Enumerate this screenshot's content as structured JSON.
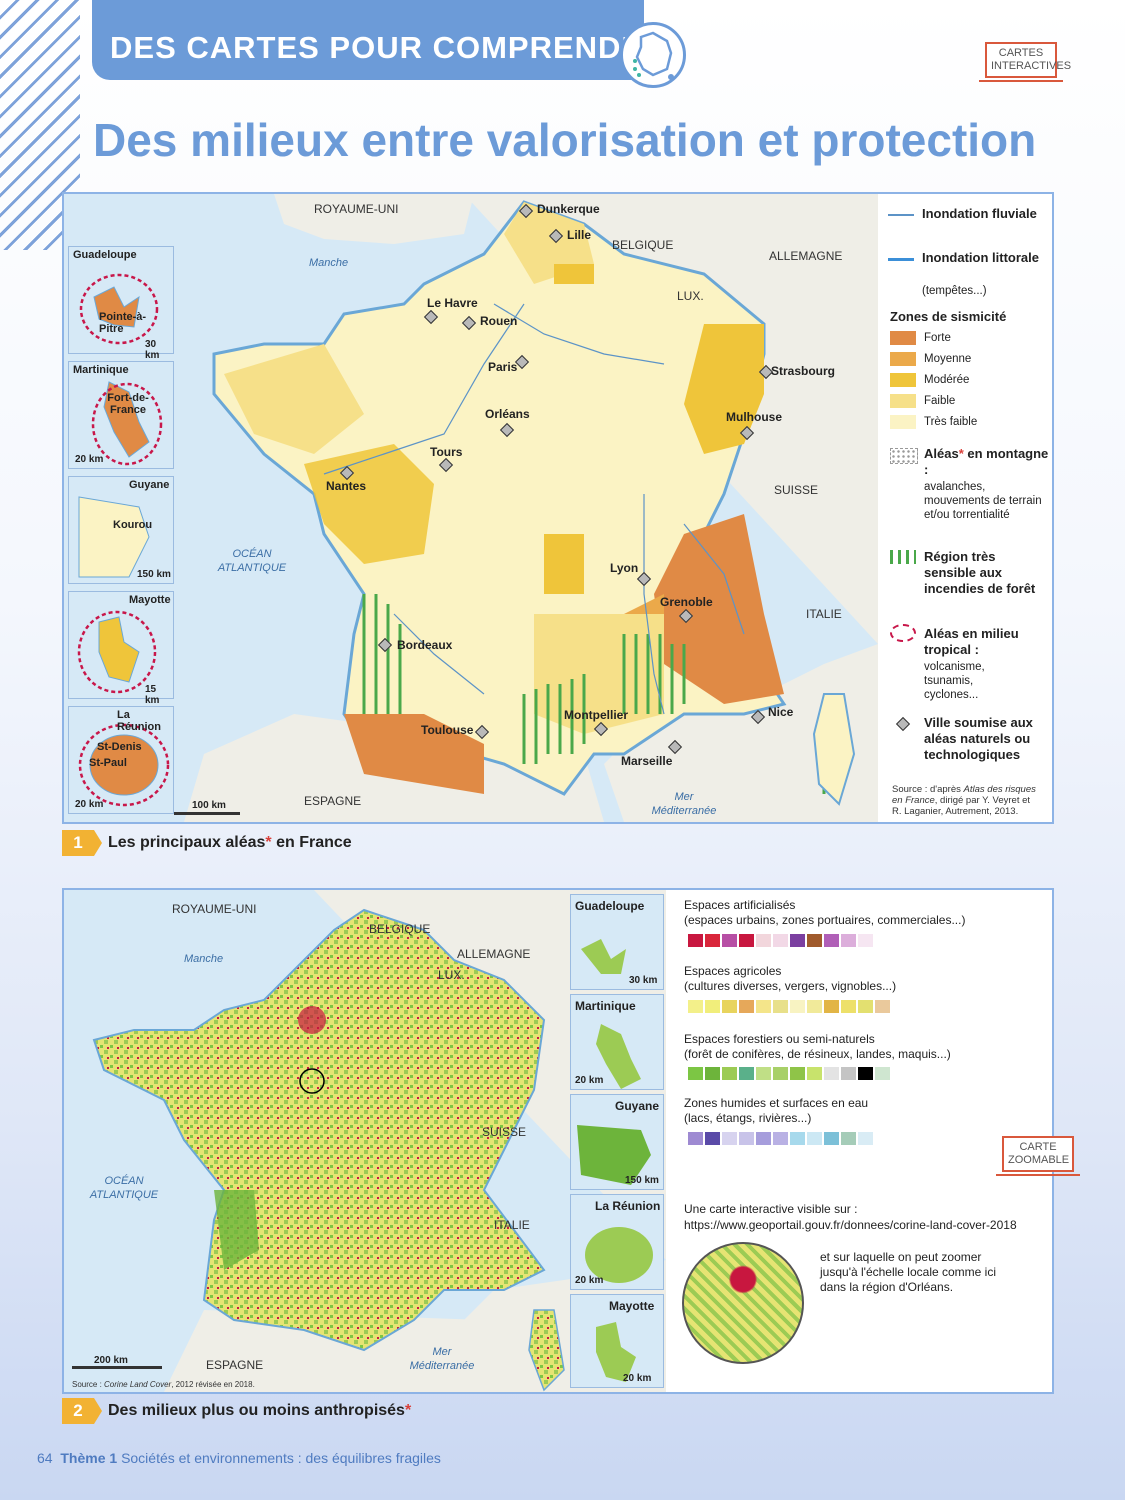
{
  "header": {
    "section": "DES CARTES POUR COMPRENDRE",
    "badge_top": "CARTES INTERACTIVES",
    "title": "Des milieux entre valorisation et protection"
  },
  "map1": {
    "countries": [
      "ROYAUME-UNI",
      "BELGIQUE",
      "ALLEMAGNE",
      "LUX.",
      "SUISSE",
      "ITALIE",
      "ESPAGNE"
    ],
    "seas": {
      "manche": "Manche",
      "ocean": "OCÉAN ATLANTIQUE",
      "med": "Mer Méditerranée"
    },
    "cities": [
      "Dunkerque",
      "Lille",
      "Le Havre",
      "Rouen",
      "Paris",
      "Strasbourg",
      "Orléans",
      "Mulhouse",
      "Tours",
      "Nantes",
      "Lyon",
      "Grenoble",
      "Bordeaux",
      "Montpellier",
      "Nice",
      "Toulouse",
      "Marseille"
    ],
    "insets": [
      {
        "name": "Guadeloupe",
        "city": "Pointe-à-Pitre",
        "scale": "30 km"
      },
      {
        "name": "Martinique",
        "city": "Fort-de-France",
        "scale": "20 km"
      },
      {
        "name": "Guyane",
        "city": "Kourou",
        "scale": "150 km"
      },
      {
        "name": "Mayotte",
        "city": "",
        "scale": "15 km"
      },
      {
        "name": "La Réunion",
        "city": "St-Denis",
        "city2": "St-Paul",
        "scale": "20 km"
      }
    ],
    "scale": "100 km",
    "legend": {
      "fluvial": "Inondation fluviale",
      "littorale": "Inondation littorale",
      "littorale_sub": "(tempêtes...)",
      "seismic_title": "Zones de sismicité",
      "seismic": [
        {
          "label": "Forte",
          "color": "#e08a45"
        },
        {
          "label": "Moyenne",
          "color": "#eba94a"
        },
        {
          "label": "Modérée",
          "color": "#efc53a"
        },
        {
          "label": "Faible",
          "color": "#f6e089"
        },
        {
          "label": "Très faible",
          "color": "#fbf3c4"
        }
      ],
      "mountain_title": "Aléas",
      "mountain_title2": "en montagne :",
      "mountain_sub": "avalanches, mouvements de terrain et/ou torrentialité",
      "fire": "Région très sensible aux incendies de forêt",
      "tropical": "Aléas en milieu tropical :",
      "tropical_sub": "volcanisme, tsunamis, cyclones...",
      "city": "Ville soumise aux aléas naturels ou technologiques",
      "source_prefix": "Source : d'après",
      "source_title": "Atlas des risques en France",
      "source_rest": ", dirigé par Y. Veyret et R. Laganier, Autrement, 2013."
    },
    "caption_num": "1",
    "caption": "Les principaux aléas",
    "caption_end": " en France"
  },
  "map2": {
    "countries": [
      "ROYAUME-UNI",
      "BELGIQUE",
      "ALLEMAGNE",
      "LUX.",
      "SUISSE",
      "ITALIE",
      "ESPAGNE"
    ],
    "seas": {
      "manche": "Manche",
      "ocean": "OCÉAN ATLANTIQUE",
      "med": "Mer Méditerranée"
    },
    "scale": "200 km",
    "source_prefix": "Source :",
    "source_title": "Corine Land Cover",
    "source_rest": ", 2012 révisée en 2018.",
    "insets": [
      {
        "name": "Guadeloupe",
        "scale": "30 km"
      },
      {
        "name": "Martinique",
        "scale": "20 km"
      },
      {
        "name": "Guyane",
        "scale": "150 km"
      },
      {
        "name": "La Réunion",
        "scale": "20 km"
      },
      {
        "name": "Mayotte",
        "scale": "20 km"
      }
    ],
    "legend": [
      {
        "title": "Espaces artificialisés",
        "sub": "(espaces urbains, zones portuaires, commerciales...)",
        "colors": [
          "#c8173f",
          "#d9263b",
          "#b74fa5",
          "#c8173f",
          "#f2d6dc",
          "#f2d8e6",
          "#7b3fa0",
          "#a05a2c",
          "#b05fb7",
          "#dcaedb",
          "#f6e6f2"
        ]
      },
      {
        "title": "Espaces agricoles",
        "sub": "(cultures diverses, vergers, vignobles...)",
        "colors": [
          "#f3f08a",
          "#f1ee7b",
          "#e8d45e",
          "#e6a85a",
          "#f4e58a",
          "#e8e08a",
          "#f8f3c2",
          "#f1ea9a",
          "#e2b546",
          "#ede06a",
          "#e3e070",
          "#eac99c"
        ]
      },
      {
        "title": "Espaces forestiers ou semi-naturels",
        "sub": "(forêt de conifères, de résineux, landes, maquis...)",
        "colors": [
          "#7cc644",
          "#6db43b",
          "#9ccb54",
          "#5ab08a",
          "#c0df86",
          "#a8d068",
          "#8fc448",
          "#c8e36c",
          "#e3e3e3",
          "#c4c4c4",
          "#000000",
          "#cfe6d0"
        ]
      },
      {
        "title": "Zones humides et surfaces en eau",
        "sub": "(lacs, étangs, rivières...)",
        "colors": [
          "#9e8ad2",
          "#5a4aa8",
          "#d7d3ef",
          "#c8c3e9",
          "#a69ddc",
          "#b9b1e4",
          "#a7d9ec",
          "#cce8f4",
          "#7cc0d8",
          "#a5ccb8",
          "#d9ecf5"
        ]
      }
    ],
    "badge": "CARTE ZOOMABLE",
    "web_text": "Une carte interactive visible sur :",
    "web_url": "https://www.geoportail.gouv.fr/donnees/corine-land-cover-2018",
    "zoom_text": "et sur laquelle on peut zoomer jusqu'à l'échelle locale comme ici dans la région d'Orléans.",
    "caption_num": "2",
    "caption": "Des milieux plus ou moins anthropisés"
  },
  "footer": {
    "page": "64",
    "theme": "Thème 1",
    "text": "Sociétés et environnements : des équilibres fragiles"
  }
}
